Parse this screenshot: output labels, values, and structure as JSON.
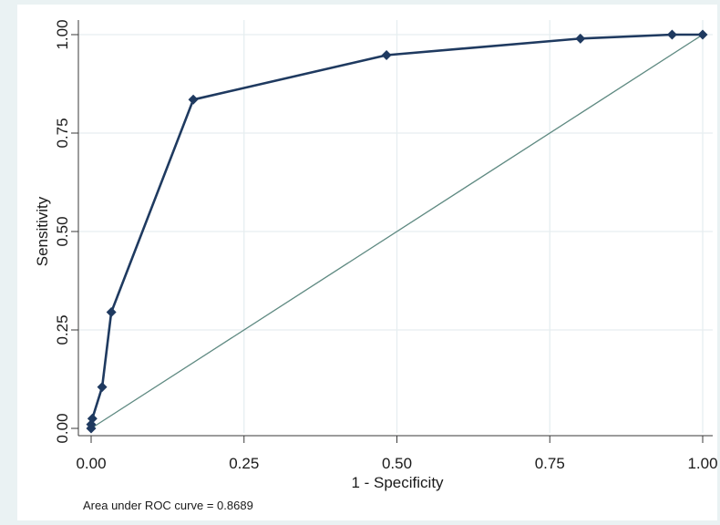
{
  "chart_data": {
    "type": "line",
    "xlabel": "1 - Specificity",
    "ylabel": "Sensitivity",
    "xlim": [
      0,
      1
    ],
    "ylim": [
      0,
      1
    ],
    "x_ticks": [
      "0.00",
      "0.25",
      "0.50",
      "0.75",
      "1.00"
    ],
    "y_ticks": [
      "0.00",
      "0.25",
      "0.50",
      "0.75",
      "1.00"
    ],
    "grid": true,
    "series": [
      {
        "role": "roc-curve",
        "color": "#1f3a60",
        "marker": "diamond",
        "x": [
          0.0,
          0.0,
          0.002,
          0.018,
          0.033,
          0.167,
          0.483,
          0.8,
          0.95,
          1.0
        ],
        "y": [
          0.0,
          0.01,
          0.025,
          0.105,
          0.295,
          0.835,
          0.948,
          0.99,
          1.0,
          1.0
        ]
      },
      {
        "role": "reference-line",
        "color": "#5f8a82",
        "x": [
          0,
          1
        ],
        "y": [
          0,
          1
        ]
      }
    ],
    "annotation": "Area under ROC curve = 0.8689"
  }
}
